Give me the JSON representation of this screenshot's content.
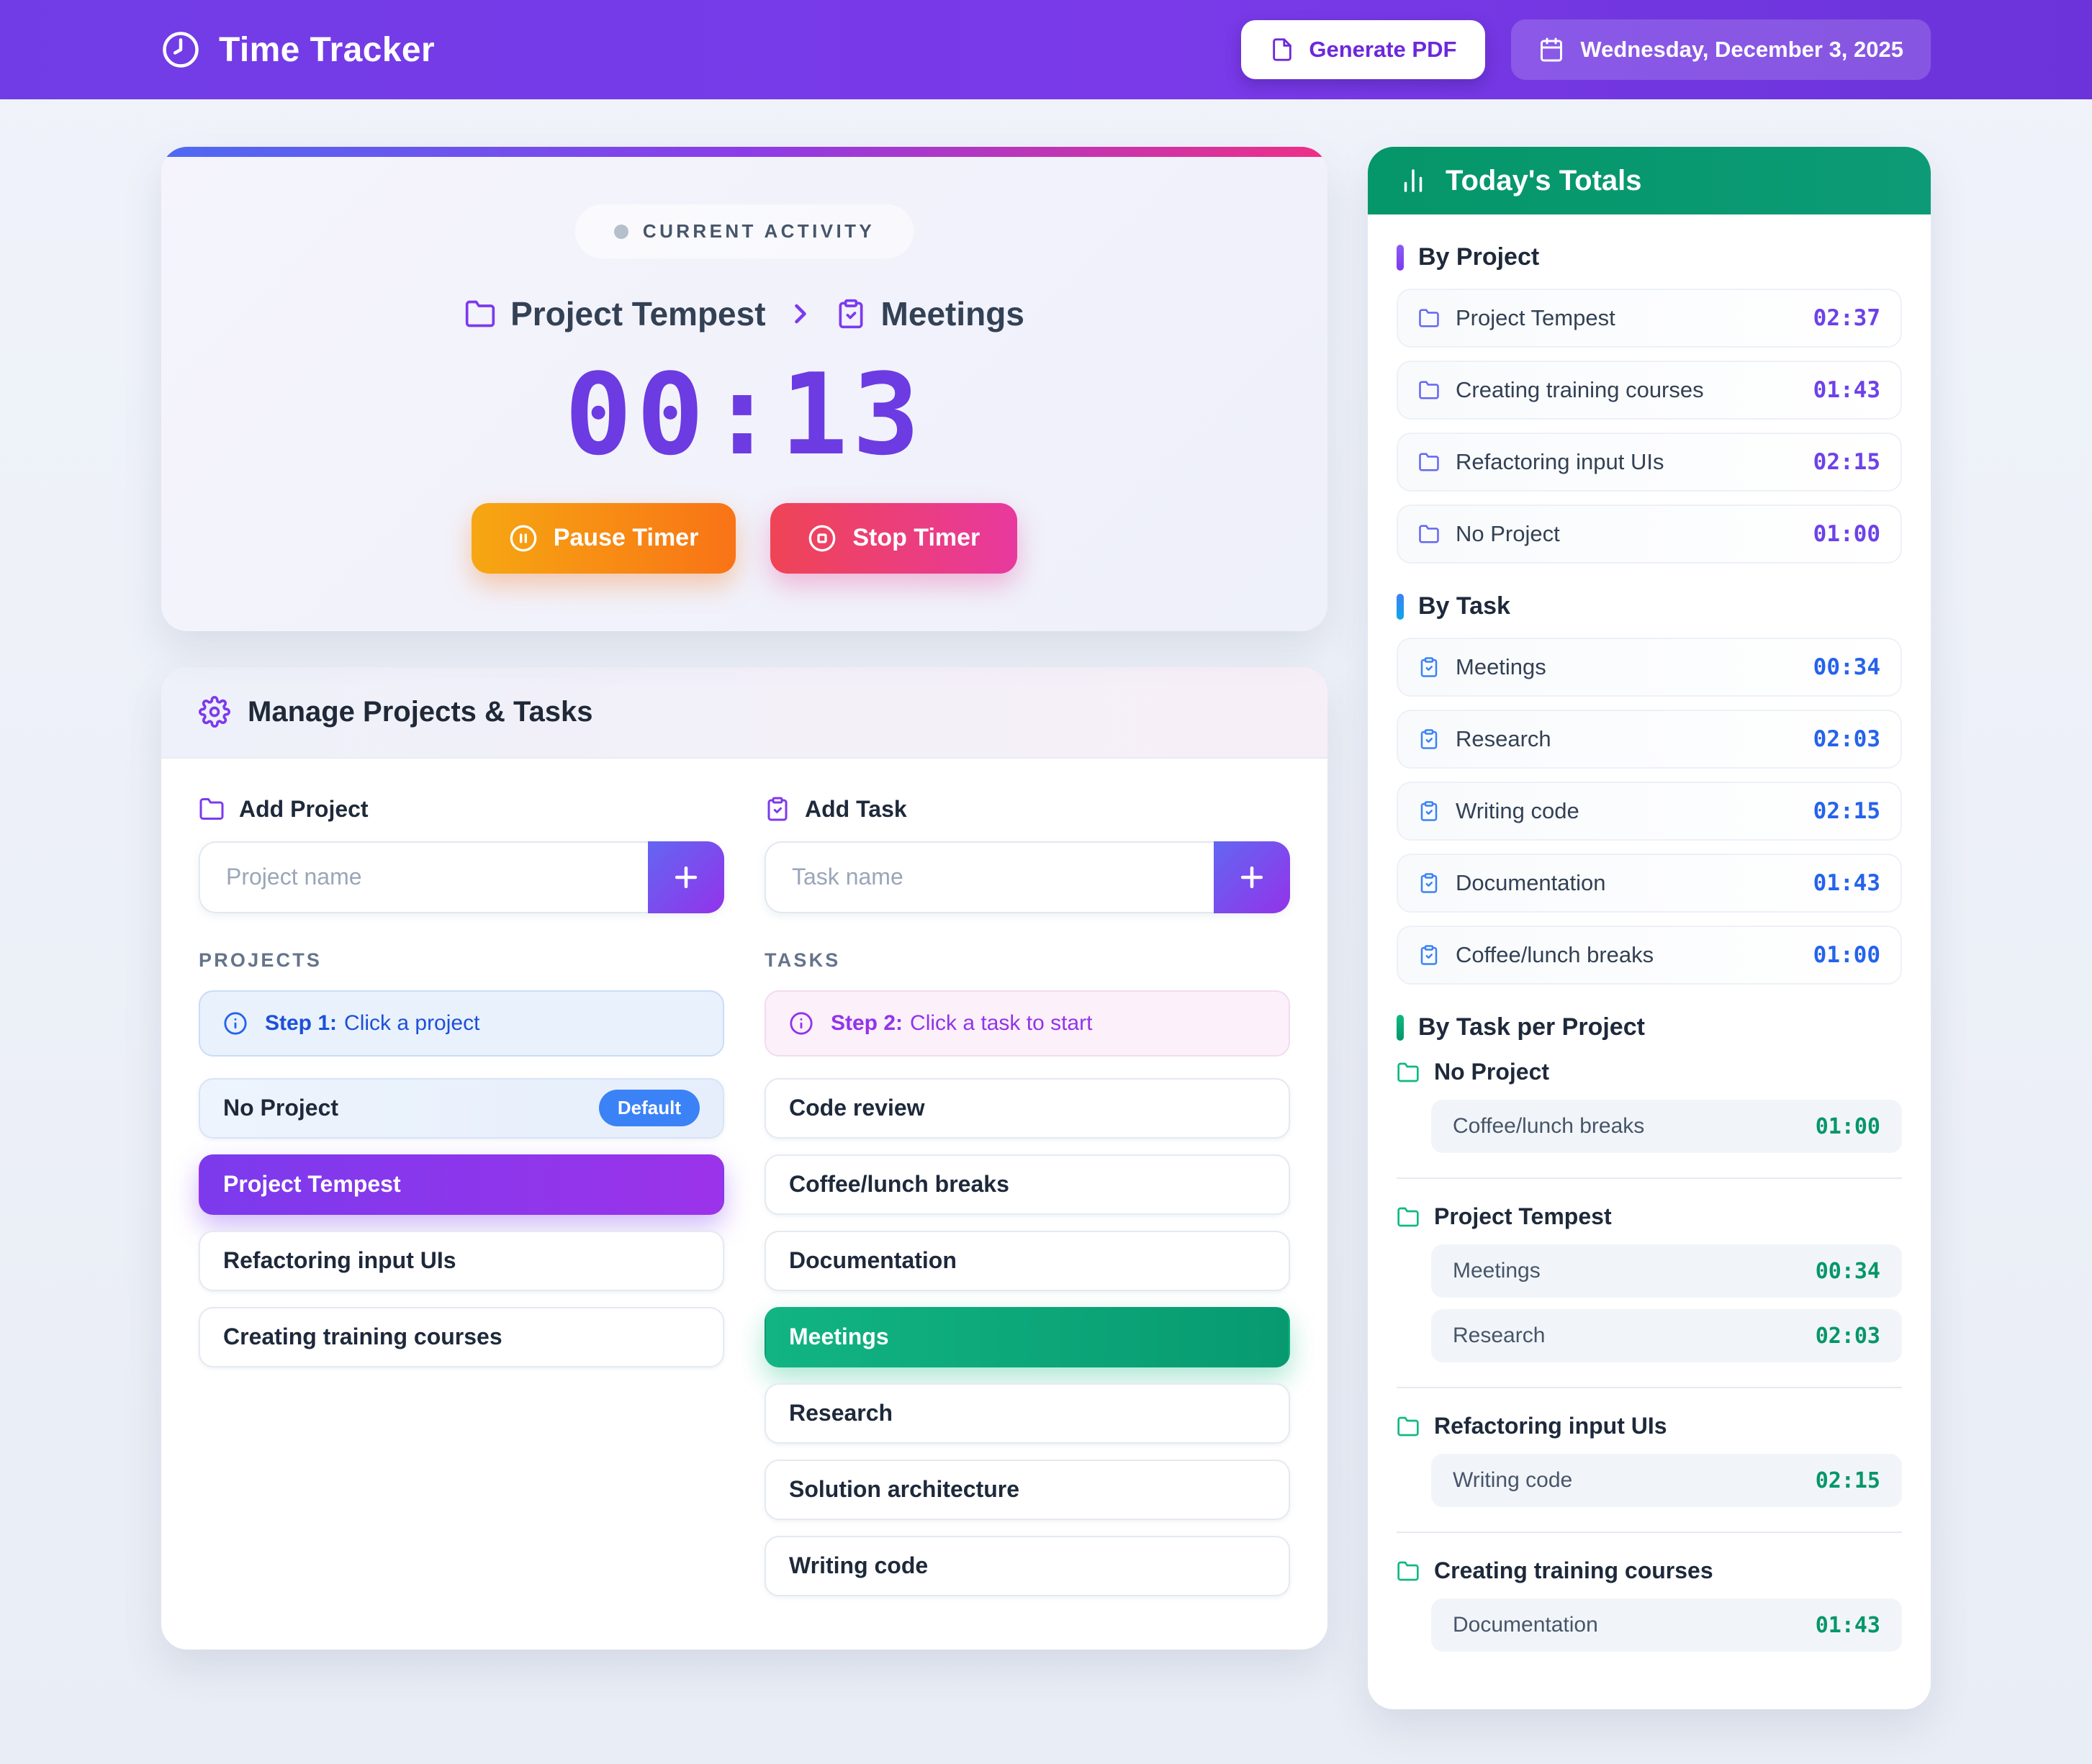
{
  "colors": {
    "header_purple_start": "#713ce6",
    "header_purple_end": "#6b33d9",
    "accent_purple": "#7c3aed",
    "accent_indigo": "#6366f1",
    "accent_blue": "#2563eb",
    "accent_emerald": "#10b981",
    "accent_green": "#059669",
    "timer_purple": "#6c3be2",
    "pause_gradient_start": "#f6a712",
    "pause_gradient_end": "#f97316",
    "stop_gradient_start": "#ef4455",
    "stop_gradient_end": "#e8399e",
    "default_badge_blue": "#3b82f6",
    "top_border_gradient": [
      "#4f6af2",
      "#8b3ce8",
      "#ee2f87"
    ]
  },
  "header": {
    "app_title": "Time Tracker",
    "generate_pdf_label": "Generate PDF",
    "date_label": "Wednesday, December 3, 2025"
  },
  "current_activity": {
    "badge_label": "CURRENT ACTIVITY",
    "project_name": "Project Tempest",
    "task_name": "Meetings",
    "timer": "00:13",
    "pause_button_label": "Pause Timer",
    "stop_button_label": "Stop Timer"
  },
  "manage": {
    "title": "Manage Projects & Tasks",
    "add_project_label": "Add Project",
    "add_task_label": "Add Task",
    "project_input_placeholder": "Project name",
    "task_input_placeholder": "Task name",
    "projects_heading": "PROJECTS",
    "tasks_heading": "TASKS",
    "projects_hint_bold": "Step 1:",
    "projects_hint_text": "Click a project",
    "tasks_hint_bold": "Step 2:",
    "tasks_hint_text": "Click a task to start",
    "projects": [
      {
        "name": "No Project",
        "badge": "Default",
        "variant": "default"
      },
      {
        "name": "Project Tempest",
        "variant": "selected"
      },
      {
        "name": "Refactoring input UIs",
        "variant": "normal"
      },
      {
        "name": "Creating training courses",
        "variant": "normal"
      }
    ],
    "tasks": [
      {
        "name": "Code review",
        "variant": "normal"
      },
      {
        "name": "Coffee/lunch breaks",
        "variant": "normal"
      },
      {
        "name": "Documentation",
        "variant": "normal"
      },
      {
        "name": "Meetings",
        "variant": "selected"
      },
      {
        "name": "Research",
        "variant": "normal"
      },
      {
        "name": "Solution architecture",
        "variant": "normal"
      },
      {
        "name": "Writing code",
        "variant": "normal"
      }
    ]
  },
  "totals": {
    "title": "Today's Totals",
    "by_project_heading": "By Project",
    "by_task_heading": "By Task",
    "by_task_per_project_heading": "By Task per Project",
    "by_project": [
      {
        "name": "Project Tempest",
        "time": "02:37"
      },
      {
        "name": "Creating training courses",
        "time": "01:43"
      },
      {
        "name": "Refactoring input UIs",
        "time": "02:15"
      },
      {
        "name": "No Project",
        "time": "01:00"
      }
    ],
    "by_task": [
      {
        "name": "Meetings",
        "time": "00:34"
      },
      {
        "name": "Research",
        "time": "02:03"
      },
      {
        "name": "Writing code",
        "time": "02:15"
      },
      {
        "name": "Documentation",
        "time": "01:43"
      },
      {
        "name": "Coffee/lunch breaks",
        "time": "01:00"
      }
    ],
    "by_task_per_project": [
      {
        "project": "No Project",
        "tasks": [
          {
            "name": "Coffee/lunch breaks",
            "time": "01:00"
          }
        ]
      },
      {
        "project": "Project Tempest",
        "tasks": [
          {
            "name": "Meetings",
            "time": "00:34"
          },
          {
            "name": "Research",
            "time": "02:03"
          }
        ]
      },
      {
        "project": "Refactoring input UIs",
        "tasks": [
          {
            "name": "Writing code",
            "time": "02:15"
          }
        ]
      },
      {
        "project": "Creating training courses",
        "tasks": [
          {
            "name": "Documentation",
            "time": "01:43"
          }
        ]
      }
    ]
  }
}
